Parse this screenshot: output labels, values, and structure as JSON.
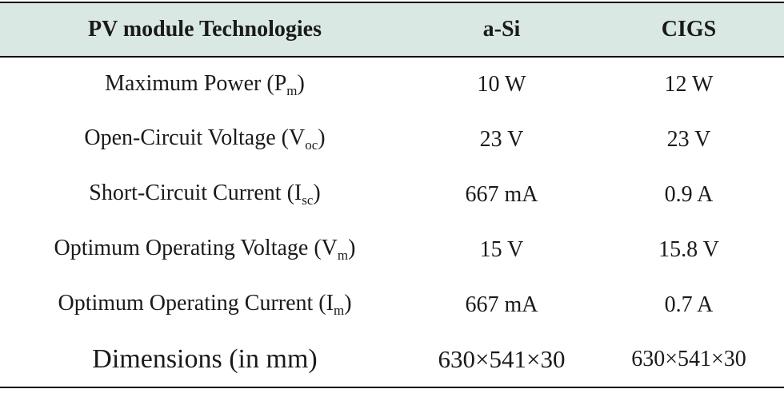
{
  "table": {
    "header": [
      "PV module Technologies",
      "a-Si",
      "CIGS"
    ],
    "rows": [
      [
        {
          "text": "Maximum Power (P",
          "sub": "m",
          "end": ")"
        },
        "10 W",
        "12 W"
      ],
      [
        {
          "text": "Open-Circuit Voltage (V",
          "sub": "oc",
          "end": ")"
        },
        "23 V",
        "23 V"
      ],
      [
        {
          "text": "Short-Circuit Current (I",
          "sub": "sc",
          "end": ")"
        },
        "667 mA",
        "0.9 A"
      ],
      [
        {
          "text": "Optimum Operating Voltage (V",
          "sub": "m",
          "end": ")"
        },
        "15 V",
        "15.8 V"
      ],
      [
        {
          "text": "Optimum Operating Current (I",
          "sub": "m",
          "end": ")"
        },
        "667 mA",
        "0.7 A"
      ],
      [
        "Dimensions (in mm)",
        "630×541×30",
        "630×541×30"
      ]
    ]
  }
}
